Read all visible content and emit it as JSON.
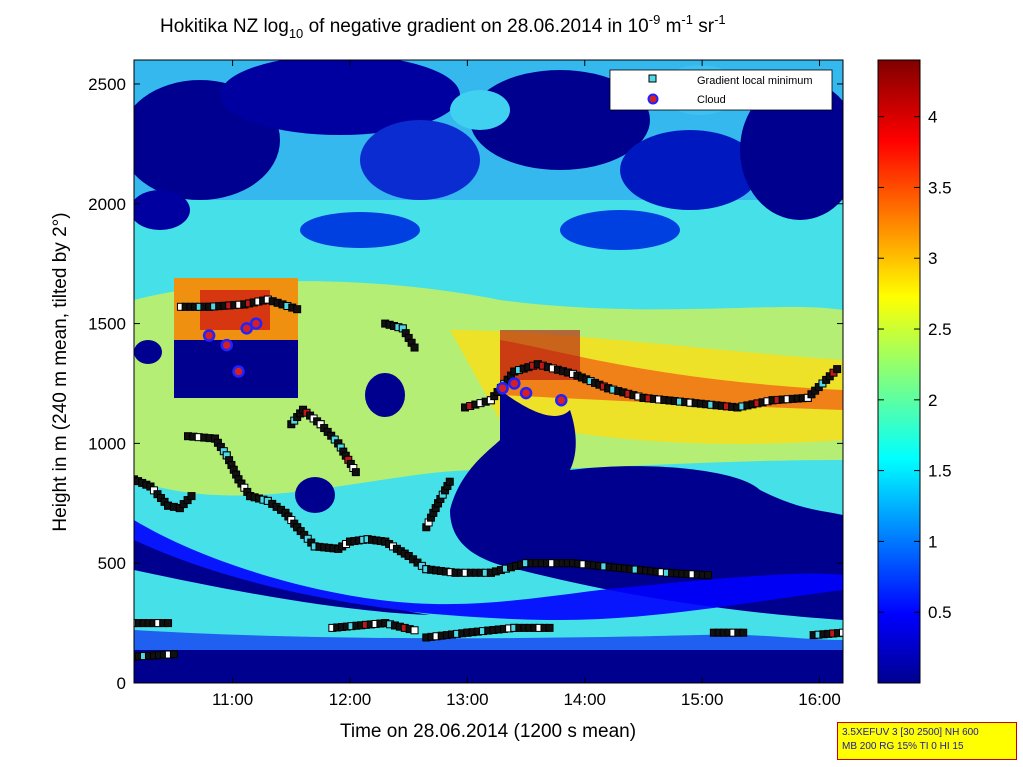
{
  "chart_data": {
    "type": "heatmap",
    "title": {
      "main": "Hokitika NZ log",
      "sub10": "10",
      "mid": " of negative gradient on 28.06.2014 in 10",
      "sup9": "-9",
      "m": " m",
      "sup1": "-1",
      "sr": " sr",
      "sup1b": "-1"
    },
    "xlabel": "Time on 28.06.2014 (1200 s mean)",
    "ylabel": "Height in m (240 m mean, tilted by 2°)",
    "x_ticks": [
      "11:00",
      "12:00",
      "13:00",
      "14:00",
      "15:00",
      "16:00"
    ],
    "x_range_hours": [
      10.16,
      16.2
    ],
    "y_ticks": [
      "0",
      "500",
      "1000",
      "1500",
      "2000",
      "2500"
    ],
    "y_range": [
      0,
      2600
    ],
    "colorbar": {
      "ticks": [
        "0.5",
        "1",
        "1.5",
        "2",
        "2.5",
        "3",
        "3.5",
        "4"
      ],
      "range": [
        0,
        4.4
      ],
      "colormap": "jet"
    },
    "legend": {
      "position": "top-right",
      "items": [
        {
          "label": "Gradient local minimum",
          "marker": "square",
          "color": "#4fd8e8"
        },
        {
          "label": "Cloud",
          "marker": "circle",
          "color": "#d42020",
          "edge": "#2222ff"
        }
      ]
    },
    "series": [
      {
        "points": [
          [
            10.56,
            1570
          ],
          [
            10.8,
            1570
          ],
          [
            11.1,
            1580
          ],
          [
            11.3,
            1600
          ],
          [
            11.55,
            1560
          ]
        ]
      },
      {
        "points": [
          [
            10.62,
            1030
          ],
          [
            10.85,
            1020
          ],
          [
            10.95,
            950
          ],
          [
            11.05,
            850
          ],
          [
            11.15,
            780
          ],
          [
            11.3,
            760
          ],
          [
            11.45,
            710
          ],
          [
            11.55,
            650
          ],
          [
            11.7,
            570
          ],
          [
            11.9,
            560
          ],
          [
            12.0,
            590
          ],
          [
            12.15,
            600
          ],
          [
            12.3,
            590
          ],
          [
            12.5,
            530
          ],
          [
            12.65,
            475
          ],
          [
            12.9,
            460
          ],
          [
            13.2,
            460
          ],
          [
            13.5,
            500
          ],
          [
            13.9,
            500
          ],
          [
            14.3,
            480
          ],
          [
            14.7,
            460
          ],
          [
            15.05,
            450
          ]
        ]
      },
      {
        "points": [
          [
            10.16,
            850
          ],
          [
            10.3,
            820
          ],
          [
            10.45,
            740
          ],
          [
            10.55,
            730
          ],
          [
            10.65,
            780
          ]
        ]
      },
      {
        "points": [
          [
            11.5,
            1080
          ],
          [
            11.6,
            1140
          ],
          [
            11.75,
            1080
          ],
          [
            11.9,
            1000
          ],
          [
            12.05,
            880
          ]
        ]
      },
      {
        "points": [
          [
            12.3,
            1500
          ],
          [
            12.45,
            1480
          ],
          [
            12.55,
            1400
          ]
        ]
      },
      {
        "points": [
          [
            12.65,
            650
          ],
          [
            12.75,
            750
          ],
          [
            12.85,
            840
          ]
        ]
      },
      {
        "points": [
          [
            12.98,
            1150
          ],
          [
            13.2,
            1180
          ],
          [
            13.4,
            1300
          ],
          [
            13.6,
            1330
          ],
          [
            13.9,
            1290
          ],
          [
            14.2,
            1230
          ],
          [
            14.5,
            1190
          ],
          [
            14.9,
            1170
          ],
          [
            15.3,
            1150
          ],
          [
            15.6,
            1180
          ],
          [
            15.9,
            1190
          ],
          [
            16.15,
            1310
          ]
        ]
      },
      {
        "points": [
          [
            10.16,
            250
          ],
          [
            10.45,
            250
          ]
        ]
      },
      {
        "points": [
          [
            10.16,
            110
          ],
          [
            10.5,
            120
          ]
        ]
      },
      {
        "points": [
          [
            11.85,
            230
          ],
          [
            12.3,
            250
          ],
          [
            12.55,
            220
          ]
        ]
      },
      {
        "points": [
          [
            12.65,
            190
          ],
          [
            13.0,
            210
          ],
          [
            13.4,
            230
          ],
          [
            13.7,
            230
          ]
        ]
      },
      {
        "points": [
          [
            15.1,
            210
          ],
          [
            15.35,
            210
          ]
        ]
      },
      {
        "points": [
          [
            15.95,
            200
          ],
          [
            16.2,
            210
          ]
        ]
      }
    ],
    "cloud_points": [
      [
        10.8,
        1450
      ],
      [
        10.95,
        1410
      ],
      [
        11.05,
        1300
      ],
      [
        11.12,
        1480
      ],
      [
        11.2,
        1500
      ],
      [
        13.3,
        1230
      ],
      [
        13.4,
        1250
      ],
      [
        13.5,
        1210
      ],
      [
        13.8,
        1180
      ]
    ]
  },
  "info_box": {
    "line1": "3.5XEFUV 3 [30 2500] NH 600",
    "line2": "MB 200 RG 15% TI 0 HI 15"
  }
}
